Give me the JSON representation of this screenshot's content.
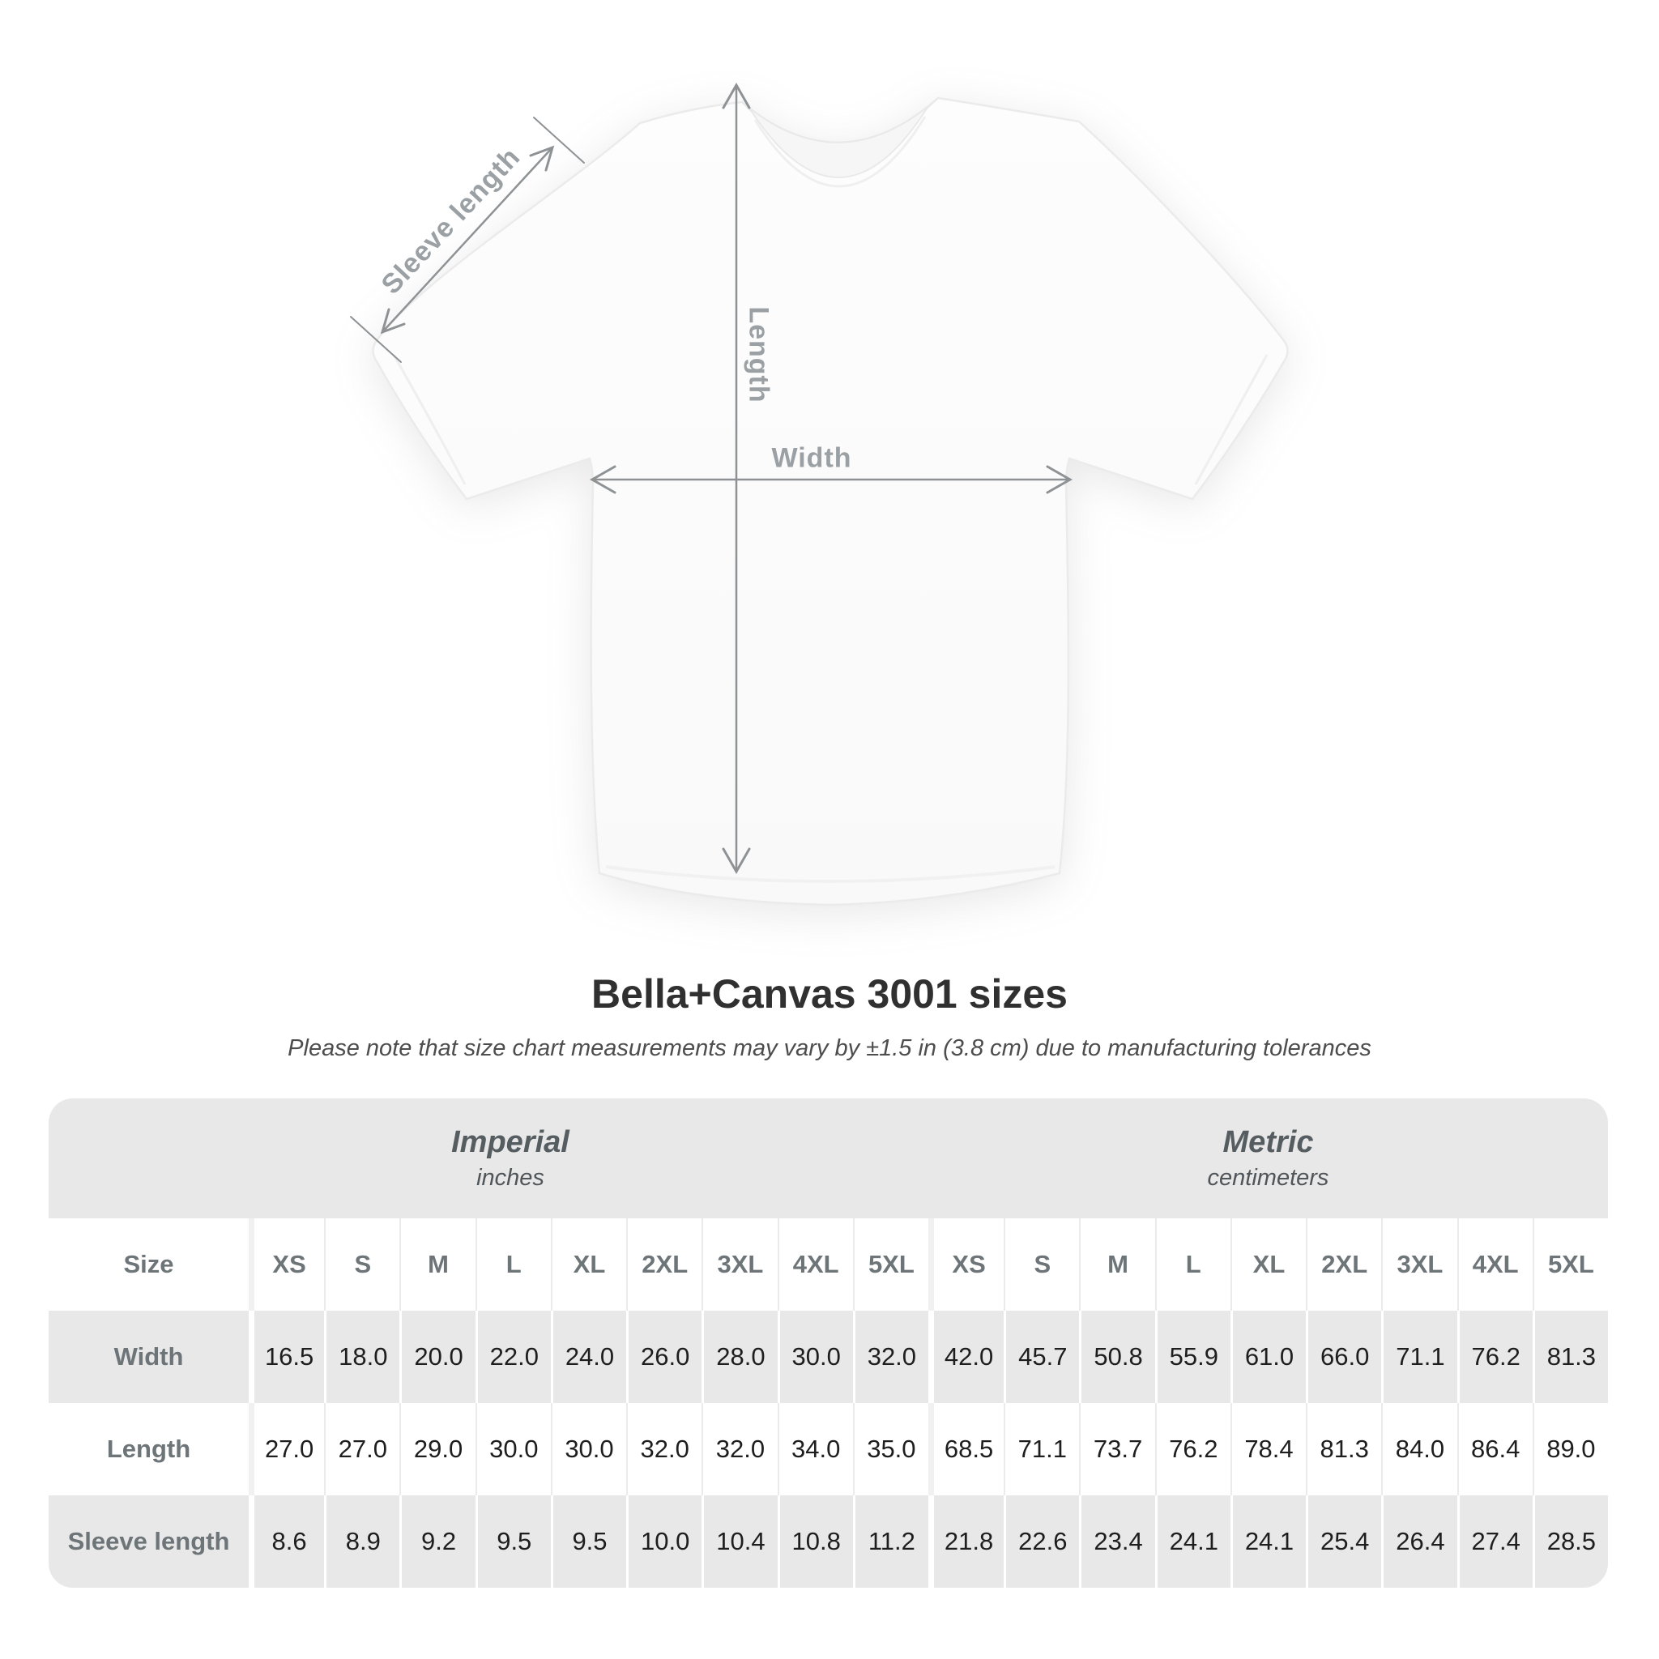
{
  "diagram": {
    "sleeve_length_label": "Sleeve length",
    "length_label": "Length",
    "width_label": "Width"
  },
  "header": {
    "title": "Bella+Canvas 3001 sizes",
    "subtitle": "Please note that size chart measurements may vary by ±1.5 in (3.8 cm) due to manufacturing tolerances"
  },
  "table": {
    "corner_label": "Size",
    "groups": [
      {
        "label": "Imperial",
        "sublabel": "inches"
      },
      {
        "label": "Metric",
        "sublabel": "centimeters"
      }
    ],
    "sizes": [
      "XS",
      "S",
      "M",
      "L",
      "XL",
      "2XL",
      "3XL",
      "4XL",
      "5XL"
    ],
    "rows": [
      {
        "label": "Width",
        "values": [
          "16.5",
          "18.0",
          "20.0",
          "22.0",
          "24.0",
          "26.0",
          "28.0",
          "30.0",
          "32.0",
          "42.0",
          "45.7",
          "50.8",
          "55.9",
          "61.0",
          "66.0",
          "71.1",
          "76.2",
          "81.3"
        ]
      },
      {
        "label": "Length",
        "values": [
          "27.0",
          "27.0",
          "29.0",
          "30.0",
          "30.0",
          "32.0",
          "32.0",
          "34.0",
          "35.0",
          "68.5",
          "71.1",
          "73.7",
          "76.2",
          "78.4",
          "81.3",
          "84.0",
          "86.4",
          "89.0"
        ]
      },
      {
        "label": "Sleeve length",
        "values": [
          "8.6",
          "8.9",
          "9.2",
          "9.5",
          "9.5",
          "10.0",
          "10.4",
          "10.8",
          "11.2",
          "21.8",
          "22.6",
          "23.4",
          "24.1",
          "24.1",
          "25.4",
          "26.4",
          "27.4",
          "28.5"
        ]
      }
    ]
  },
  "colors": {
    "band_gray": "#e9e8e8",
    "label_gray": "#6d7578",
    "value_dark": "#1e1e1e",
    "arrow_gray": "#8e9294",
    "diagram_label_gray": "#9aa0a3",
    "title_dark": "#303030"
  },
  "chart_data": {
    "type": "table",
    "title": "Bella+Canvas 3001 sizes",
    "note": "Please note that size chart measurements may vary by ±1.5 in (3.8 cm) due to manufacturing tolerances",
    "unit_groups": [
      {
        "label": "Imperial",
        "unit": "inches"
      },
      {
        "label": "Metric",
        "unit": "centimeters"
      }
    ],
    "sizes": [
      "XS",
      "S",
      "M",
      "L",
      "XL",
      "2XL",
      "3XL",
      "4XL",
      "5XL"
    ],
    "measurements": [
      {
        "name": "Width",
        "imperial_in": [
          16.5,
          18.0,
          20.0,
          22.0,
          24.0,
          26.0,
          28.0,
          30.0,
          32.0
        ],
        "metric_cm": [
          42.0,
          45.7,
          50.8,
          55.9,
          61.0,
          66.0,
          71.1,
          76.2,
          81.3
        ]
      },
      {
        "name": "Length",
        "imperial_in": [
          27.0,
          27.0,
          29.0,
          30.0,
          30.0,
          32.0,
          32.0,
          34.0,
          35.0
        ],
        "metric_cm": [
          68.5,
          71.1,
          73.7,
          76.2,
          78.4,
          81.3,
          84.0,
          86.4,
          89.0
        ]
      },
      {
        "name": "Sleeve length",
        "imperial_in": [
          8.6,
          8.9,
          9.2,
          9.5,
          9.5,
          10.0,
          10.4,
          10.8,
          11.2
        ],
        "metric_cm": [
          21.8,
          22.6,
          23.4,
          24.1,
          24.1,
          25.4,
          26.4,
          27.4,
          28.5
        ]
      }
    ]
  }
}
